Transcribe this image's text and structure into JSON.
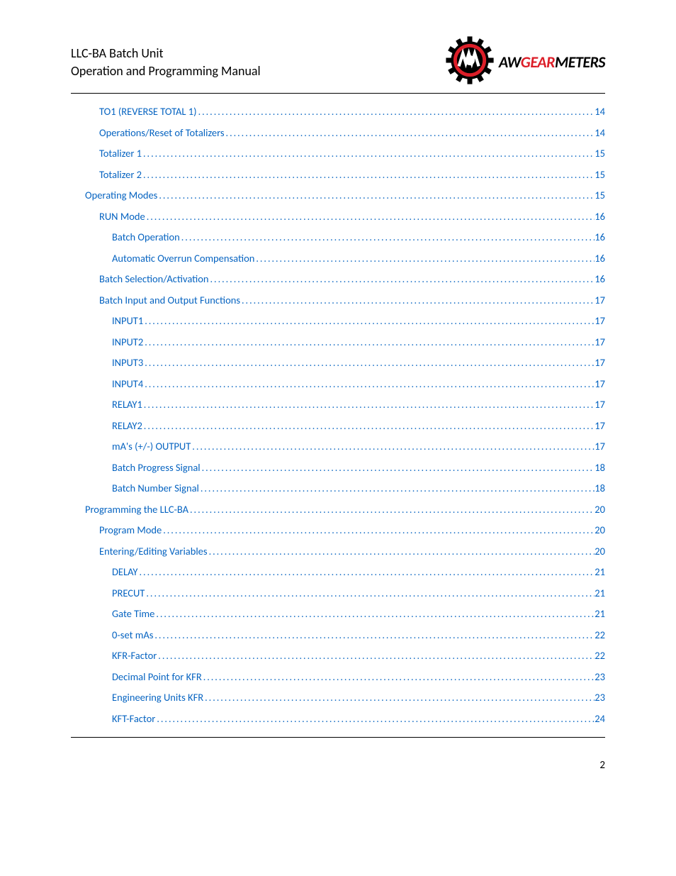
{
  "header": {
    "title": "LLC-BA Batch Unit",
    "subtitle": "Operation and Programming Manual",
    "logo": {
      "aw": "AW",
      "gear": "GEAR",
      "meters": "METERS"
    }
  },
  "toc": [
    {
      "label": "TO1 (REVERSE TOTAL 1)",
      "page": "14",
      "indent": 2
    },
    {
      "label": "Operations/Reset of Totalizers",
      "page": "14",
      "indent": 2
    },
    {
      "label": "Totalizer 1",
      "page": "15",
      "indent": 2
    },
    {
      "label": "Totalizer 2",
      "page": "15",
      "indent": 2
    },
    {
      "label": "Operating Modes",
      "page": "15",
      "indent": 1
    },
    {
      "label": "RUN Mode",
      "page": "16",
      "indent": 2
    },
    {
      "label": "Batch Operation",
      "page": "16",
      "indent": 3
    },
    {
      "label": "Automatic Overrun Compensation",
      "page": "16",
      "indent": 3
    },
    {
      "label": "Batch Selection/Activation",
      "page": "16",
      "indent": 2
    },
    {
      "label": "Batch Input and Output Functions",
      "page": "17",
      "indent": 2
    },
    {
      "label": "INPUT1",
      "page": "17",
      "indent": 3
    },
    {
      "label": "INPUT2",
      "page": "17",
      "indent": 3
    },
    {
      "label": "INPUT3",
      "page": "17",
      "indent": 3
    },
    {
      "label": "INPUT4",
      "page": "17",
      "indent": 3
    },
    {
      "label": "RELAY1",
      "page": "17",
      "indent": 3
    },
    {
      "label": "RELAY2",
      "page": "17",
      "indent": 3
    },
    {
      "label": "mA's (+/-) OUTPUT",
      "page": "17",
      "indent": 3
    },
    {
      "label": "Batch Progress Signal",
      "page": "18",
      "indent": 3
    },
    {
      "label": "Batch Number Signal",
      "page": "18",
      "indent": 3
    },
    {
      "label": "Programming the LLC-BA",
      "page": "20",
      "indent": 1
    },
    {
      "label": "Program Mode",
      "page": "20",
      "indent": 2
    },
    {
      "label": "Entering/Editing Variables",
      "page": "20",
      "indent": 2
    },
    {
      "label": "DELAY",
      "page": "21",
      "indent": 3
    },
    {
      "label": "PRECUT",
      "page": "21",
      "indent": 3
    },
    {
      "label": "Gate Time",
      "page": "21",
      "indent": 3
    },
    {
      "label": "0-set mAs",
      "page": "22",
      "indent": 3
    },
    {
      "label": "KFR-Factor",
      "page": "22",
      "indent": 3
    },
    {
      "label": "Decimal Point for KFR",
      "page": "23",
      "indent": 3
    },
    {
      "label": "Engineering Units KFR",
      "page": "23",
      "indent": 3
    },
    {
      "label": "KFT-Factor",
      "page": "24",
      "indent": 3
    }
  ],
  "page_number": "2",
  "colors": {
    "link": "#0563c1",
    "brand_red": "#dc1e28",
    "text": "#000000",
    "background": "#ffffff"
  }
}
